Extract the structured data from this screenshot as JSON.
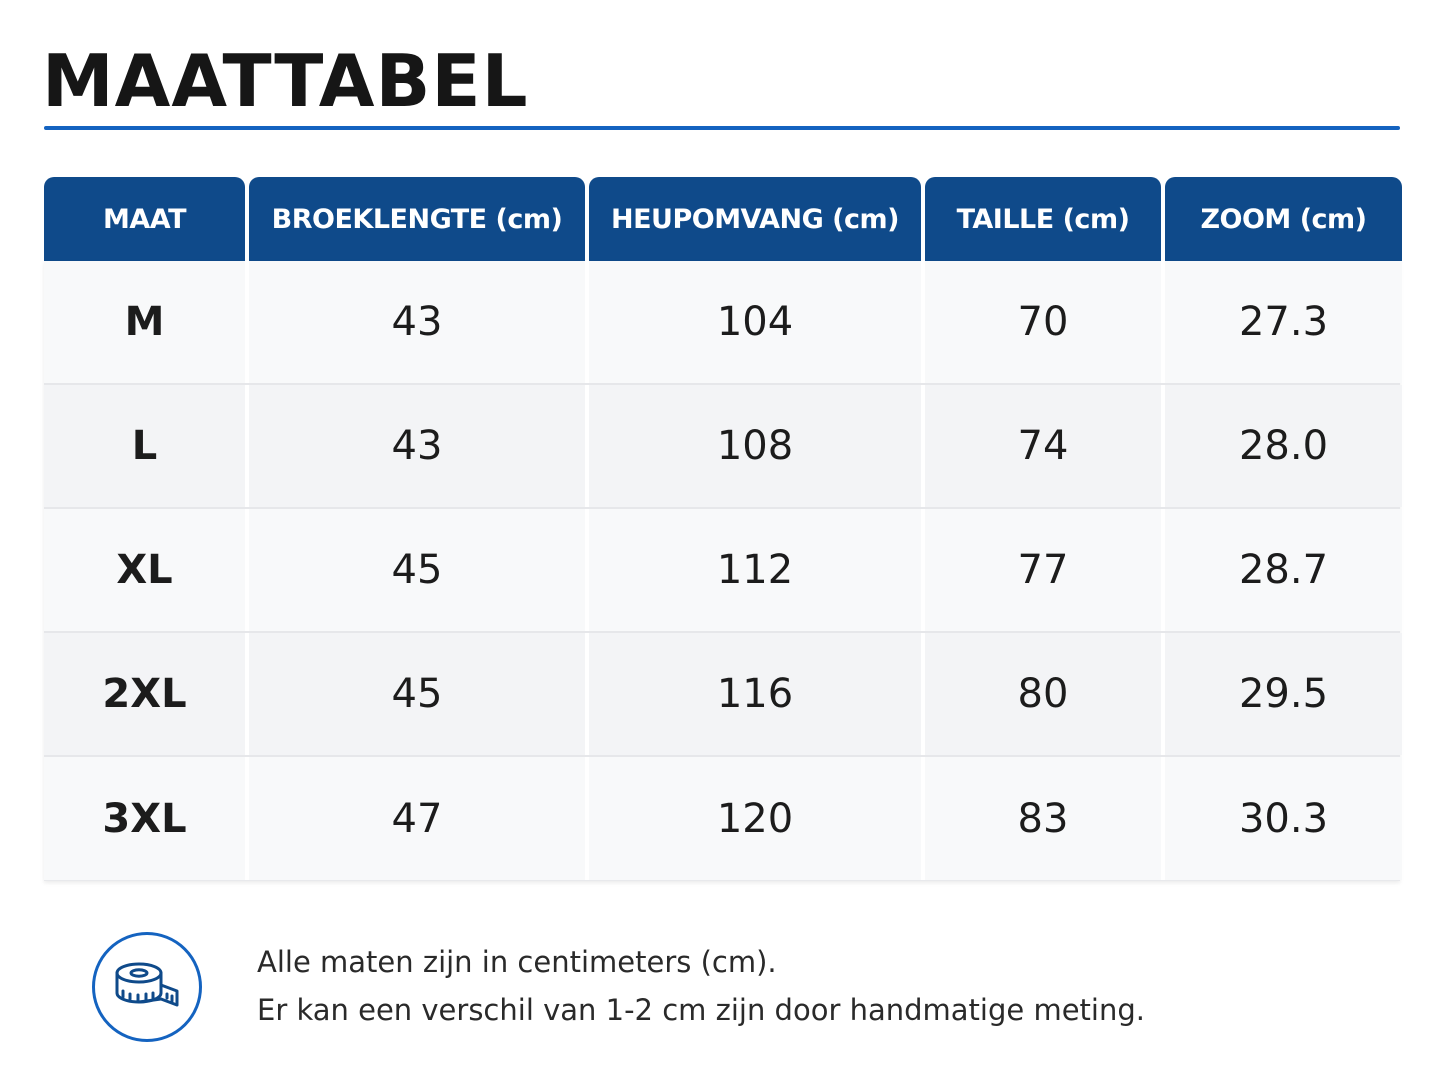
{
  "title": "MAATTABEL",
  "accent_color": "#1463c0",
  "header_color": "#0f4a8a",
  "table": {
    "columns": [
      "MAAT",
      "BROEKLENGTE (cm)",
      "HEUPOMVANG (cm)",
      "TAILLE (cm)",
      "ZOOM (cm)"
    ],
    "rows": [
      [
        "M",
        "43",
        "104",
        "70",
        "27.3"
      ],
      [
        "L",
        "43",
        "108",
        "74",
        "28.0"
      ],
      [
        "XL",
        "45",
        "112",
        "77",
        "28.7"
      ],
      [
        "2XL",
        "45",
        "116",
        "80",
        "29.5"
      ],
      [
        "3XL",
        "47",
        "120",
        "83",
        "30.3"
      ]
    ]
  },
  "footer": {
    "icon": "measuring-tape-icon",
    "lines": [
      "Alle maten zijn in centimeters (cm).",
      "Er kan een verschil van 1-2 cm zijn door handmatige meting."
    ]
  }
}
